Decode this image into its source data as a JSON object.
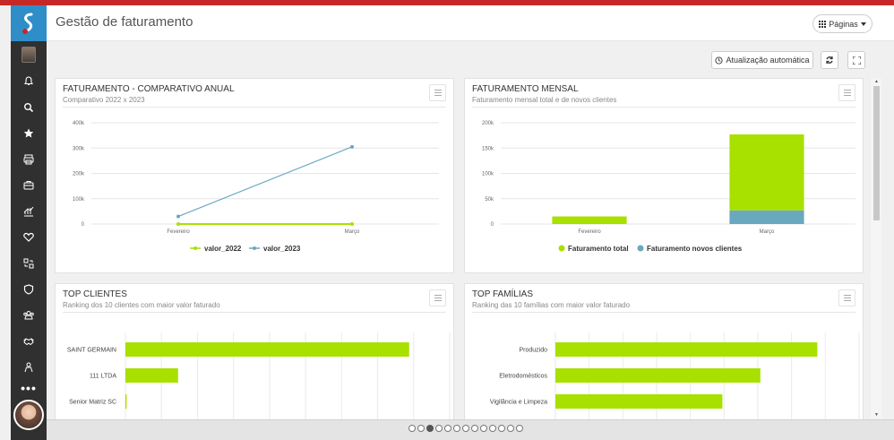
{
  "header": {
    "title": "Gestão de faturamento",
    "pages_button": "Páginas"
  },
  "toolbar": {
    "auto_update": "Atualização automática"
  },
  "cards": {
    "annual": {
      "title": "FATURAMENTO - COMPARATIVO ANUAL",
      "subtitle": "Comparativo 2022 x 2023"
    },
    "monthly": {
      "title": "FATURAMENTO MENSAL",
      "subtitle": "Faturamento mensal total e de novos clientes"
    },
    "top_clients": {
      "title": "TOP CLIENTES",
      "subtitle": "Ranking dos 10 clientes com maior valor faturado"
    },
    "top_families": {
      "title": "TOP FAMÍLIAS",
      "subtitle": "Ranking das 10 famílias com maior valor faturado"
    }
  },
  "colors": {
    "green": "#a8e000",
    "blue": "#6aa8c0",
    "sidebar": "#303030",
    "brand_red": "#c62828",
    "logo_blue": "#2f8ec8"
  },
  "sidebar_icons": [
    "bell-icon",
    "search-icon",
    "star-icon",
    "printer-icon",
    "briefcase-icon",
    "chart-icon",
    "heart-icon",
    "transfer-icon",
    "shield-icon",
    "group-icon",
    "handshake-icon",
    "person-icon"
  ],
  "pager": {
    "count": 13,
    "active_index": 2
  },
  "chart_data": [
    {
      "type": "line",
      "categories": [
        "Fevereiro",
        "Março"
      ],
      "ylim": [
        0,
        400000
      ],
      "yticks": [
        "0",
        "100k",
        "200k",
        "300k",
        "400k"
      ],
      "series": [
        {
          "name": "valor_2022",
          "values": [
            0,
            0
          ],
          "color": "#a8e000"
        },
        {
          "name": "valor_2023",
          "values": [
            30000,
            305000
          ],
          "color": "#6aa8c0"
        }
      ],
      "legend": "bottom"
    },
    {
      "type": "bar",
      "stacked": true,
      "categories": [
        "Fevereiro",
        "Março"
      ],
      "ylim": [
        0,
        200000
      ],
      "yticks": [
        "0",
        "50k",
        "100k",
        "150k",
        "200k"
      ],
      "series": [
        {
          "name": "Faturamento total",
          "values": [
            15000,
            150000
          ],
          "color": "#a8e000"
        },
        {
          "name": "Faturamento novos clientes",
          "values": [
            0,
            27000
          ],
          "color": "#6aa8c0"
        }
      ],
      "legend": "bottom"
    },
    {
      "type": "bar",
      "orientation": "horizontal",
      "categories": [
        "SAINT GERMAIN",
        "111 LTDA",
        "Senior Matriz SC"
      ],
      "values": [
        70,
        13,
        0.3
      ],
      "xlim": [
        0,
        80
      ],
      "color": "#a8e000"
    },
    {
      "type": "bar",
      "orientation": "horizontal",
      "categories": [
        "Produzido",
        "Eletrodomésticos",
        "Vigilância e Limpeza"
      ],
      "values": [
        69,
        54,
        44
      ],
      "xlim": [
        0,
        80
      ],
      "color": "#a8e000"
    }
  ]
}
